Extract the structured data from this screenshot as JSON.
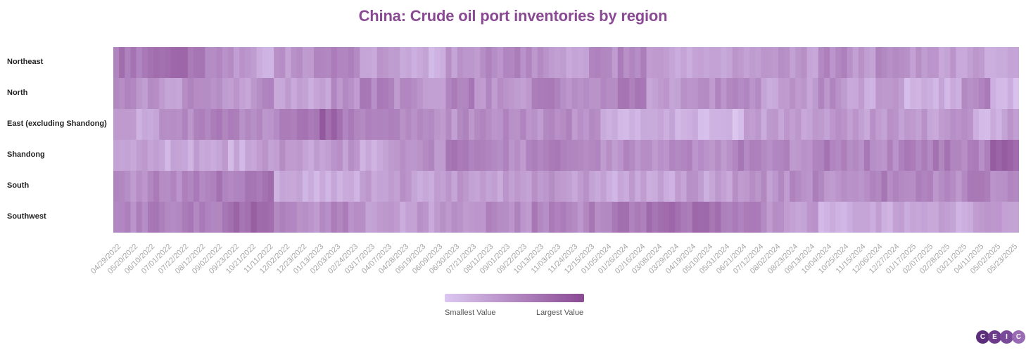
{
  "chart_data": {
    "type": "heatmap",
    "title": "China: Crude oil port inventories by region",
    "rows": [
      "Northeast",
      "North",
      "East (excluding Shandong)",
      "Shandong",
      "South",
      "Southwest"
    ],
    "x_tick_labels": [
      "04/29/2022",
      "05/20/2022",
      "06/10/2022",
      "07/01/2022",
      "07/22/2022",
      "08/12/2022",
      "09/02/2022",
      "09/23/2022",
      "10/21/2022",
      "11/11/2022",
      "12/02/2022",
      "12/23/2022",
      "01/13/2023",
      "02/03/2023",
      "02/24/2023",
      "03/17/2023",
      "04/07/2023",
      "04/28/2023",
      "05/19/2023",
      "06/09/2023",
      "06/30/2023",
      "07/21/2023",
      "08/11/2023",
      "09/01/2023",
      "09/22/2023",
      "10/13/2023",
      "11/03/2023",
      "11/24/2023",
      "12/15/2023",
      "01/05/2024",
      "01/26/2024",
      "02/16/2024",
      "03/08/2024",
      "03/29/2024",
      "04/19/2024",
      "05/10/2024",
      "05/31/2024",
      "06/21/2024",
      "07/12/2024",
      "08/02/2024",
      "08/23/2024",
      "09/13/2024",
      "10/04/2024",
      "10/25/2024",
      "11/15/2024",
      "12/06/2024",
      "12/27/2024",
      "01/17/2025",
      "02/07/2025",
      "02/28/2025",
      "03/21/2025",
      "04/11/2025",
      "05/02/2025",
      "05/23/2025"
    ],
    "columns": 158,
    "value_scale": "normalized 0 (smallest) to 1 (largest)",
    "values_by_segment": {
      "Northeast": [
        [
          0,
          0.65
        ],
        [
          4,
          0.6
        ],
        [
          7,
          0.78
        ],
        [
          10,
          0.85
        ],
        [
          13,
          0.62
        ],
        [
          16,
          0.45
        ],
        [
          20,
          0.42
        ],
        [
          24,
          0.25
        ],
        [
          28,
          0.4
        ],
        [
          33,
          0.45
        ],
        [
          38,
          0.5
        ],
        [
          43,
          0.35
        ],
        [
          48,
          0.3
        ],
        [
          53,
          0.2
        ],
        [
          58,
          0.35
        ],
        [
          63,
          0.45
        ],
        [
          68,
          0.5
        ],
        [
          73,
          0.4
        ],
        [
          78,
          0.3
        ],
        [
          83,
          0.45
        ],
        [
          88,
          0.55
        ],
        [
          93,
          0.3
        ],
        [
          98,
          0.25
        ],
        [
          103,
          0.2
        ],
        [
          108,
          0.3
        ],
        [
          113,
          0.4
        ],
        [
          118,
          0.35
        ],
        [
          123,
          0.5
        ],
        [
          128,
          0.4
        ],
        [
          133,
          0.45
        ],
        [
          138,
          0.4
        ],
        [
          143,
          0.35
        ],
        [
          148,
          0.3
        ],
        [
          153,
          0.25
        ]
      ],
      "North": [
        [
          0,
          0.55
        ],
        [
          4,
          0.4
        ],
        [
          8,
          0.3
        ],
        [
          12,
          0.5
        ],
        [
          16,
          0.45
        ],
        [
          20,
          0.35
        ],
        [
          24,
          0.5
        ],
        [
          28,
          0.35
        ],
        [
          33,
          0.3
        ],
        [
          38,
          0.45
        ],
        [
          43,
          0.55
        ],
        [
          48,
          0.45
        ],
        [
          53,
          0.4
        ],
        [
          58,
          0.6
        ],
        [
          63,
          0.45
        ],
        [
          68,
          0.35
        ],
        [
          73,
          0.6
        ],
        [
          78,
          0.45
        ],
        [
          83,
          0.5
        ],
        [
          88,
          0.65
        ],
        [
          93,
          0.35
        ],
        [
          98,
          0.4
        ],
        [
          103,
          0.45
        ],
        [
          108,
          0.5
        ],
        [
          113,
          0.3
        ],
        [
          118,
          0.35
        ],
        [
          123,
          0.45
        ],
        [
          128,
          0.25
        ],
        [
          133,
          0.35
        ],
        [
          138,
          0.15
        ],
        [
          143,
          0.2
        ],
        [
          148,
          0.55
        ],
        [
          153,
          0.15
        ]
      ],
      "East (excluding Shandong)": [
        [
          0,
          0.3
        ],
        [
          4,
          0.25
        ],
        [
          8,
          0.45
        ],
        [
          12,
          0.5
        ],
        [
          16,
          0.55
        ],
        [
          20,
          0.5
        ],
        [
          24,
          0.45
        ],
        [
          28,
          0.55
        ],
        [
          32,
          0.7
        ],
        [
          36,
          0.8
        ],
        [
          40,
          0.55
        ],
        [
          45,
          0.5
        ],
        [
          50,
          0.45
        ],
        [
          55,
          0.4
        ],
        [
          60,
          0.45
        ],
        [
          65,
          0.5
        ],
        [
          70,
          0.45
        ],
        [
          75,
          0.5
        ],
        [
          80,
          0.4
        ],
        [
          85,
          0.15
        ],
        [
          90,
          0.15
        ],
        [
          95,
          0.2
        ],
        [
          100,
          0.15
        ],
        [
          105,
          0.1
        ],
        [
          110,
          0.3
        ],
        [
          115,
          0.35
        ],
        [
          120,
          0.3
        ],
        [
          125,
          0.4
        ],
        [
          130,
          0.35
        ],
        [
          135,
          0.4
        ],
        [
          140,
          0.35
        ],
        [
          145,
          0.45
        ],
        [
          150,
          0.15
        ],
        [
          155,
          0.35
        ]
      ],
      "Shandong": [
        [
          0,
          0.25
        ],
        [
          4,
          0.35
        ],
        [
          8,
          0.2
        ],
        [
          12,
          0.25
        ],
        [
          16,
          0.3
        ],
        [
          20,
          0.2
        ],
        [
          24,
          0.35
        ],
        [
          28,
          0.4
        ],
        [
          33,
          0.3
        ],
        [
          38,
          0.35
        ],
        [
          43,
          0.25
        ],
        [
          48,
          0.35
        ],
        [
          53,
          0.45
        ],
        [
          58,
          0.6
        ],
        [
          63,
          0.55
        ],
        [
          68,
          0.45
        ],
        [
          73,
          0.55
        ],
        [
          78,
          0.5
        ],
        [
          83,
          0.45
        ],
        [
          88,
          0.5
        ],
        [
          93,
          0.45
        ],
        [
          98,
          0.5
        ],
        [
          103,
          0.4
        ],
        [
          108,
          0.55
        ],
        [
          113,
          0.5
        ],
        [
          118,
          0.45
        ],
        [
          123,
          0.6
        ],
        [
          128,
          0.55
        ],
        [
          133,
          0.5
        ],
        [
          138,
          0.55
        ],
        [
          143,
          0.6
        ],
        [
          148,
          0.55
        ],
        [
          153,
          0.75
        ]
      ],
      "South": [
        [
          0,
          0.45
        ],
        [
          4,
          0.5
        ],
        [
          8,
          0.45
        ],
        [
          12,
          0.55
        ],
        [
          16,
          0.6
        ],
        [
          20,
          0.6
        ],
        [
          24,
          0.65
        ],
        [
          28,
          0.25
        ],
        [
          33,
          0.2
        ],
        [
          38,
          0.25
        ],
        [
          43,
          0.3
        ],
        [
          48,
          0.35
        ],
        [
          53,
          0.3
        ],
        [
          58,
          0.35
        ],
        [
          63,
          0.3
        ],
        [
          68,
          0.4
        ],
        [
          73,
          0.45
        ],
        [
          78,
          0.35
        ],
        [
          83,
          0.25
        ],
        [
          88,
          0.3
        ],
        [
          93,
          0.25
        ],
        [
          98,
          0.35
        ],
        [
          103,
          0.3
        ],
        [
          108,
          0.45
        ],
        [
          113,
          0.4
        ],
        [
          118,
          0.5
        ],
        [
          123,
          0.45
        ],
        [
          128,
          0.5
        ],
        [
          133,
          0.55
        ],
        [
          138,
          0.5
        ],
        [
          143,
          0.45
        ],
        [
          148,
          0.55
        ],
        [
          153,
          0.5
        ]
      ],
      "Southwest": [
        [
          0,
          0.5
        ],
        [
          4,
          0.55
        ],
        [
          8,
          0.5
        ],
        [
          12,
          0.55
        ],
        [
          16,
          0.6
        ],
        [
          20,
          0.7
        ],
        [
          24,
          0.75
        ],
        [
          28,
          0.5
        ],
        [
          33,
          0.45
        ],
        [
          38,
          0.5
        ],
        [
          43,
          0.4
        ],
        [
          48,
          0.3
        ],
        [
          53,
          0.35
        ],
        [
          58,
          0.45
        ],
        [
          63,
          0.5
        ],
        [
          68,
          0.45
        ],
        [
          73,
          0.55
        ],
        [
          78,
          0.5
        ],
        [
          83,
          0.55
        ],
        [
          88,
          0.6
        ],
        [
          93,
          0.7
        ],
        [
          98,
          0.7
        ],
        [
          103,
          0.65
        ],
        [
          108,
          0.55
        ],
        [
          113,
          0.45
        ],
        [
          118,
          0.35
        ],
        [
          123,
          0.15
        ],
        [
          128,
          0.2
        ],
        [
          133,
          0.25
        ],
        [
          138,
          0.3
        ],
        [
          143,
          0.25
        ],
        [
          148,
          0.3
        ],
        [
          153,
          0.35
        ]
      ]
    },
    "legend": {
      "min_label": "Smallest Value",
      "max_label": "Largest Value"
    },
    "colors": {
      "min": "#dcc8f1",
      "max": "#8a4a93"
    }
  },
  "brand": {
    "letters": [
      "C",
      "E",
      "I",
      "C"
    ],
    "colors": [
      "#5b2d7a",
      "#6e3a8c",
      "#7a4a9a",
      "#9a6bb5"
    ]
  }
}
